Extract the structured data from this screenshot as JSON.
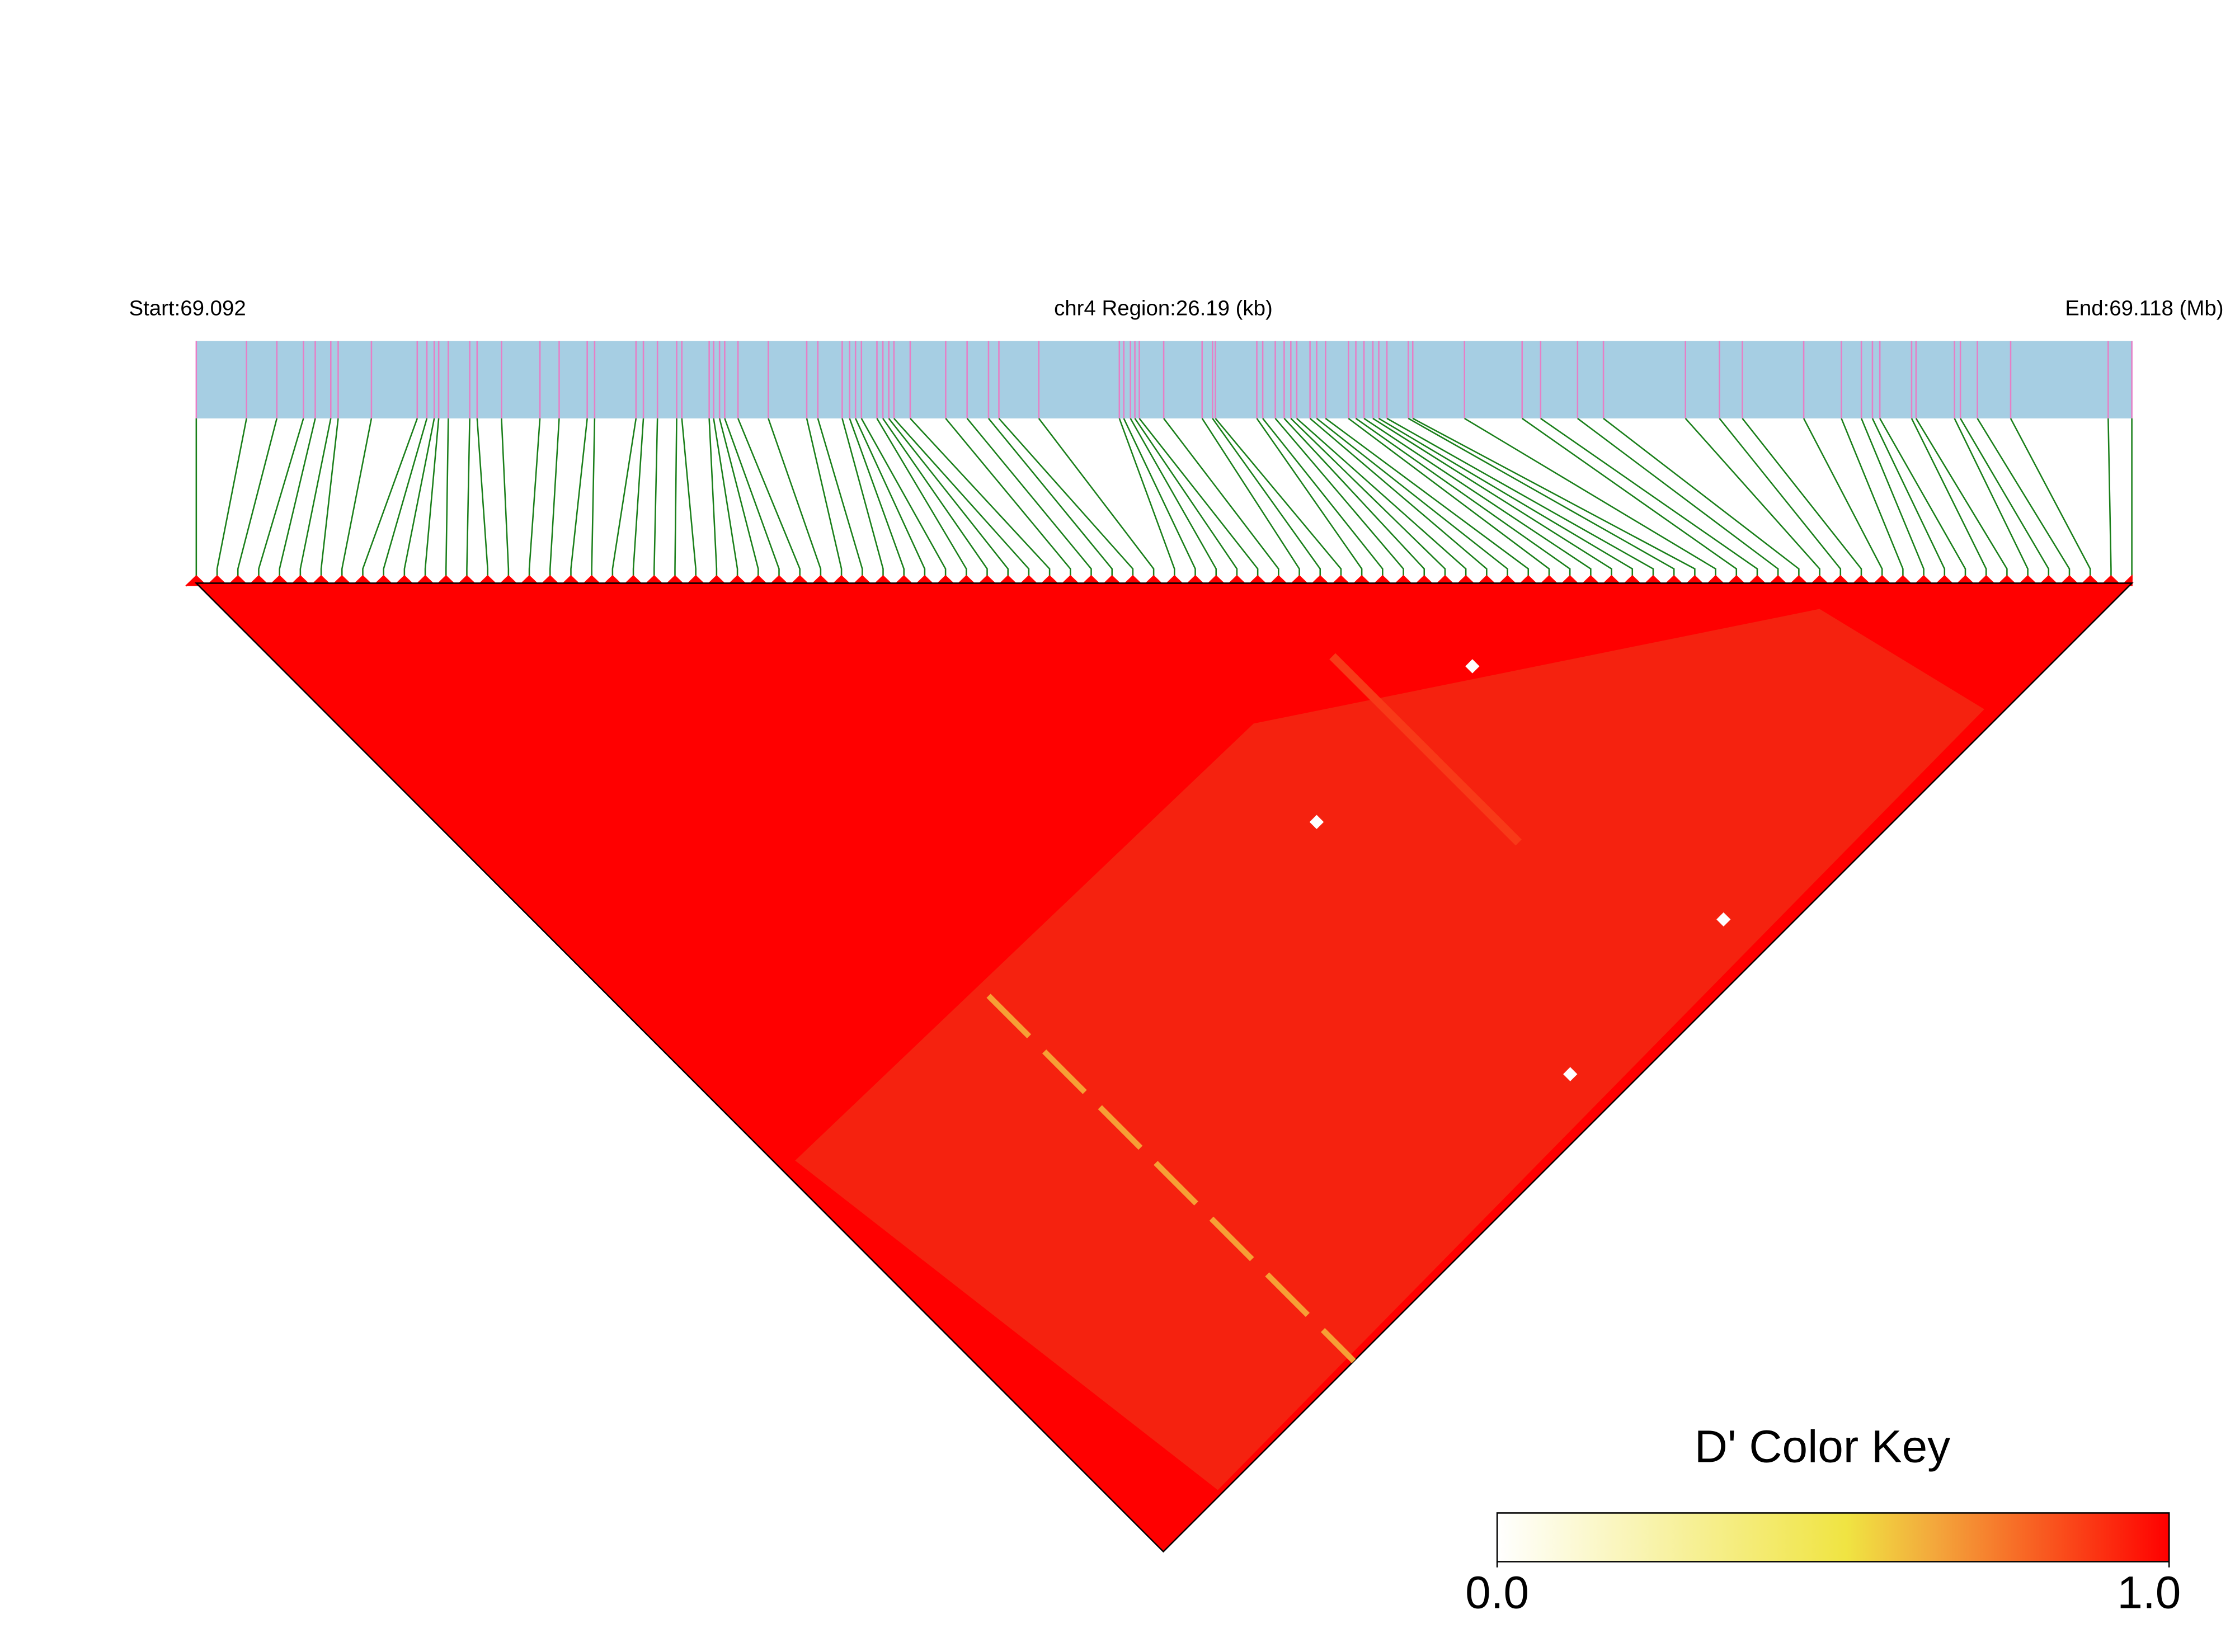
{
  "header": {
    "start": "Start:69.092",
    "region": "chr4 Region:26.19 (kb)",
    "end": "End:69.118 (Mb)"
  },
  "snp_positions_kb": [
    0,
    0.68,
    1.09,
    1.45,
    1.61,
    1.82,
    1.92,
    2.37,
    2.99,
    3.12,
    3.22,
    3.28,
    3.41,
    3.7,
    3.8,
    4.13,
    4.65,
    4.91,
    5.29,
    5.39,
    5.95,
    6.05,
    6.24,
    6.5,
    6.57,
    6.94,
    7.0,
    7.08,
    7.15,
    7.33,
    7.74,
    8.26,
    8.41,
    8.74,
    8.84,
    8.92,
    9.0,
    9.21,
    9.29,
    9.37,
    9.44,
    9.66,
    10.14,
    10.43,
    10.72,
    10.86,
    11.4,
    12.49,
    12.55,
    12.64,
    12.7,
    12.76,
    13.09,
    13.61,
    13.75,
    13.79,
    14.35,
    14.43,
    14.6,
    14.72,
    14.81,
    14.89,
    15.07,
    15.16,
    15.28,
    15.59,
    15.69,
    15.8,
    15.92,
    16.0,
    16.11,
    16.4,
    16.46,
    17.16,
    17.94,
    18.19,
    18.69,
    19.04,
    20.15,
    20.61,
    20.92,
    21.75,
    22.26,
    22.53,
    22.68,
    22.78,
    23.21,
    23.27,
    23.79,
    23.87,
    24.1,
    24.55,
    25.87,
    26.19
  ],
  "color_key": {
    "title": "D' Color Key",
    "ticks": [
      {
        "value": 0,
        "label": "0.0"
      },
      {
        "value": 1,
        "label": "1.0"
      }
    ]
  }
}
